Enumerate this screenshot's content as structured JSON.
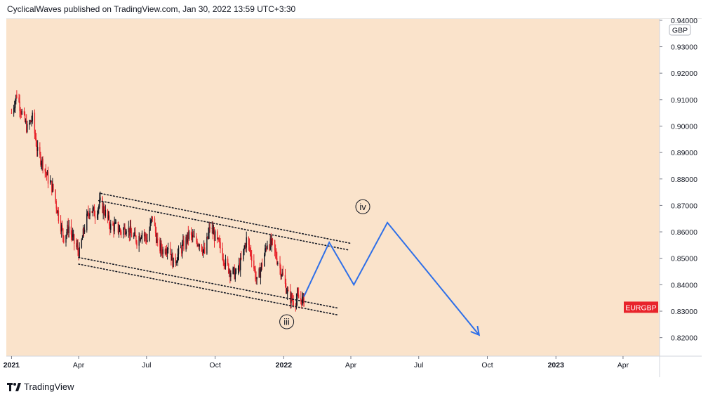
{
  "header": {
    "attribution": "CyclicalWaves published on TradingView.com, Jan 30, 2022 13:59 UTC+3:30"
  },
  "footer": {
    "brand": "TradingView",
    "logo_icon": "tradingview-logo-icon"
  },
  "colors": {
    "background": "#fae3cb",
    "up": "#131722",
    "down": "#e8242b",
    "projection": "#2e6fe8",
    "symbol_badge": "#e8242b",
    "channel": "#131722"
  },
  "chart_data": {
    "type": "candlestick",
    "symbol": "EURGBP",
    "currency": "GBP",
    "y_ticks": [
      "0.94000",
      "0.93000",
      "0.92000",
      "0.91000",
      "0.90000",
      "0.89000",
      "0.88000",
      "0.87000",
      "0.86000",
      "0.85000",
      "0.84000",
      "0.83000",
      "0.82000"
    ],
    "ylim": [
      0.813,
      0.9405
    ],
    "x_ticks": [
      "2021",
      "Apr",
      "Jul",
      "Oct",
      "2022",
      "Apr",
      "Jul",
      "Oct",
      "2023",
      "Apr"
    ],
    "price_path": [
      [
        "2021-01-01",
        0.905
      ],
      [
        "2021-01-08",
        0.912
      ],
      [
        "2021-01-15",
        0.905
      ],
      [
        "2021-01-22",
        0.899
      ],
      [
        "2021-01-29",
        0.903
      ],
      [
        "2021-02-05",
        0.89
      ],
      [
        "2021-02-12",
        0.886
      ],
      [
        "2021-02-19",
        0.88
      ],
      [
        "2021-02-26",
        0.876
      ],
      [
        "2021-03-05",
        0.866
      ],
      [
        "2021-03-12",
        0.858
      ],
      [
        "2021-03-19",
        0.862
      ],
      [
        "2021-03-26",
        0.856
      ],
      [
        "2021-04-02",
        0.852
      ],
      [
        "2021-04-09",
        0.862
      ],
      [
        "2021-04-16",
        0.869
      ],
      [
        "2021-04-23",
        0.867
      ],
      [
        "2021-04-30",
        0.871
      ],
      [
        "2021-05-07",
        0.867
      ],
      [
        "2021-05-14",
        0.862
      ],
      [
        "2021-05-21",
        0.862
      ],
      [
        "2021-05-28",
        0.86
      ],
      [
        "2021-06-04",
        0.862
      ],
      [
        "2021-06-11",
        0.859
      ],
      [
        "2021-06-18",
        0.857
      ],
      [
        "2021-06-25",
        0.86
      ],
      [
        "2021-07-02",
        0.857
      ],
      [
        "2021-07-09",
        0.866
      ],
      [
        "2021-07-16",
        0.855
      ],
      [
        "2021-07-23",
        0.853
      ],
      [
        "2021-07-30",
        0.855
      ],
      [
        "2021-08-06",
        0.848
      ],
      [
        "2021-08-13",
        0.852
      ],
      [
        "2021-08-20",
        0.855
      ],
      [
        "2021-08-27",
        0.859
      ],
      [
        "2021-09-03",
        0.857
      ],
      [
        "2021-09-10",
        0.856
      ],
      [
        "2021-09-17",
        0.852
      ],
      [
        "2021-09-24",
        0.862
      ],
      [
        "2021-10-01",
        0.858
      ],
      [
        "2021-10-08",
        0.854
      ],
      [
        "2021-10-15",
        0.848
      ],
      [
        "2021-10-22",
        0.845
      ],
      [
        "2021-10-29",
        0.844
      ],
      [
        "2021-11-05",
        0.849
      ],
      [
        "2021-11-12",
        0.857
      ],
      [
        "2021-11-19",
        0.851
      ],
      [
        "2021-11-26",
        0.841
      ],
      [
        "2021-12-03",
        0.848
      ],
      [
        "2021-12-10",
        0.856
      ],
      [
        "2021-12-17",
        0.855
      ],
      [
        "2021-12-24",
        0.849
      ],
      [
        "2021-12-31",
        0.843
      ],
      [
        "2022-01-07",
        0.836
      ],
      [
        "2022-01-14",
        0.834
      ],
      [
        "2022-01-21",
        0.835
      ],
      [
        "2022-01-28",
        0.834
      ]
    ],
    "channel": {
      "upper_outer": [
        [
          "2021-05-01",
          0.8745
        ],
        [
          "2022-03-31",
          0.8557
        ]
      ],
      "upper_inner": [
        [
          "2021-04-28",
          0.8718
        ],
        [
          "2022-03-30",
          0.8531
        ]
      ],
      "lower_inner": [
        [
          "2021-04-01",
          0.8503
        ],
        [
          "2022-03-16",
          0.8311
        ]
      ],
      "lower_outer": [
        [
          "2021-04-01",
          0.8478
        ],
        [
          "2022-03-16",
          0.8285
        ]
      ]
    },
    "projection": [
      [
        "2022-01-28",
        0.8355
      ],
      [
        "2022-03-03",
        0.856
      ],
      [
        "2022-04-05",
        0.84
      ],
      [
        "2022-05-20",
        0.8635
      ],
      [
        "2022-09-20",
        0.821
      ]
    ],
    "labels": [
      {
        "text": "iii",
        "x": "2022-01-05",
        "y": 0.826
      },
      {
        "text": "iv",
        "x": "2022-04-17",
        "y": 0.8695
      }
    ],
    "last_price_label": "EURGBP",
    "last_price": 0.8315
  }
}
